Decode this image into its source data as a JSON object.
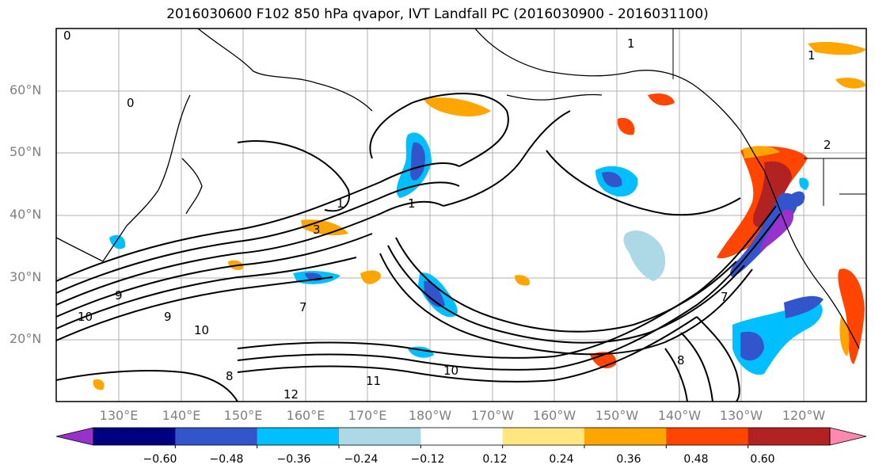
{
  "title": "2016030600 F102 850 hPa qvapor, IVT Landfall PC (2016030900 - 2016031100)",
  "lat_labels": [
    "60°N",
    "50°N",
    "40°N",
    "30°N",
    "20°N"
  ],
  "lon_labels": [
    "130°E",
    "140°E",
    "150°E",
    "160°E",
    "170°E",
    "180°W",
    "170°W",
    "160°W",
    "150°W",
    "140°W",
    "130°W",
    "120°W"
  ],
  "colorbar": {
    "ticks": [
      "−0.60",
      "−0.48",
      "−0.36",
      "−0.24",
      "−0.12",
      "0.12",
      "0.24",
      "0.36",
      "0.48",
      "0.60"
    ],
    "colors": [
      "#9932CC",
      "#000080",
      "#3355CC",
      "#00BFFF",
      "#ADD8E6",
      "#FFFFFF",
      "#FFE680",
      "#FFA500",
      "#FF4500",
      "#B22222",
      "#FF88B0"
    ]
  },
  "contour_labels": [
    "0",
    "0",
    "1",
    "1",
    "1",
    "1",
    "2",
    "3",
    "7",
    "7",
    "8",
    "8",
    "9",
    "9",
    "10",
    "10",
    "10",
    "11",
    "12"
  ]
}
